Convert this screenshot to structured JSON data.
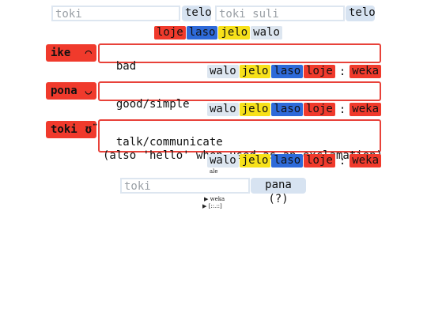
{
  "top_search": {
    "left_placeholder": "toki",
    "left_button": "telo",
    "right_placeholder": "toki suli",
    "right_button": "telo"
  },
  "legend": [
    "loje",
    "laso",
    "jelo",
    "walo"
  ],
  "words": [
    {
      "word": "ike",
      "glyph": "⌒",
      "definition": "bad",
      "tags": [
        "walo",
        "jelo",
        "laso",
        "loje"
      ],
      "sep": ":",
      "extra": "weka"
    },
    {
      "word": "pona",
      "glyph": "◡",
      "definition": "good/simple",
      "tags": [
        "walo",
        "jelo",
        "laso",
        "loje"
      ],
      "sep": ":",
      "extra": "weka"
    },
    {
      "word": "toki",
      "glyph": "ʊ̈",
      "definition": "talk/communicate\n(also 'hello' when used as an exclamation)",
      "tags": [
        "walo",
        "jelo",
        "laso",
        "loje"
      ],
      "sep": ":",
      "extra": "weka"
    }
  ],
  "ale_label": "ale",
  "bottom": {
    "placeholder": "toki",
    "button": "pana (?)",
    "details": [
      "weka",
      "[::.::]"
    ]
  },
  "colors": {
    "red": "#f03a2c",
    "blue": "#2e6ad9",
    "yellow": "#f7e11a",
    "grey": "#dde6f0"
  }
}
